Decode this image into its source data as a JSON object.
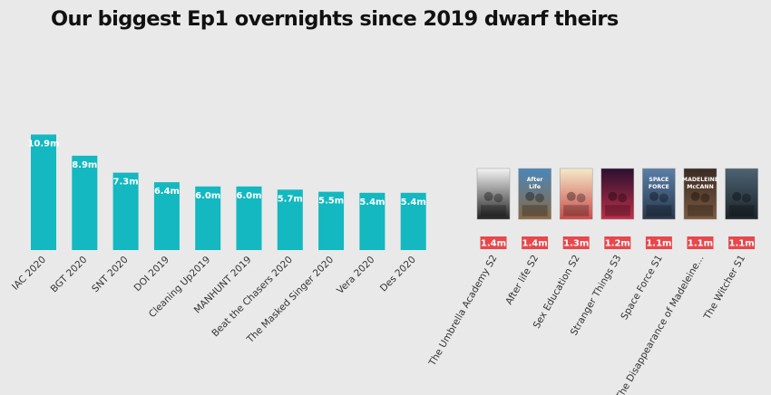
{
  "title": "Our biggest Ep1 overnights since 2019 dwarf theirs",
  "colors": {
    "bar": "#13b8c0",
    "badge": "#e8474c",
    "background": "#e9e9e9",
    "title": "#111111"
  },
  "chart_data": [
    {
      "type": "bar",
      "categories": [
        "IAC 2020",
        "BGT 2020",
        "SNT 2020",
        "DOI 2019",
        "Cleaning Up2019",
        "MANHUNT 2019",
        "Beat the Chasers 2020",
        "The Masked Singer 2020",
        "Vera 2020",
        "Des 2020"
      ],
      "values": [
        10.9,
        8.9,
        7.3,
        6.4,
        6.0,
        6.0,
        5.7,
        5.5,
        5.4,
        5.4
      ],
      "labels": [
        "10.9m",
        "8.9m",
        "7.3m",
        "6.4m",
        "6.0m",
        "6.0m",
        "5.7m",
        "5.5m",
        "5.4m",
        "5.4m"
      ],
      "unit": "m"
    },
    {
      "type": "table",
      "categories": [
        "The Umbrella Academy S2",
        "After life S2",
        "Sex Education S2",
        "Stranger Things S3",
        "Space Force S1",
        "The Disappearance of Madeleine...",
        "The Witcher S1"
      ],
      "values": [
        1.4,
        1.4,
        1.3,
        1.2,
        1.1,
        1.1,
        1.1
      ],
      "labels": [
        "1.4m",
        "1.4m",
        "1.3m",
        "1.2m",
        "1.1m",
        "1.1m",
        "1.1m"
      ],
      "poster_text": [
        "",
        "After Life",
        "",
        "",
        "SPACE FORCE",
        "MADELEINE McCANN",
        ""
      ]
    }
  ]
}
